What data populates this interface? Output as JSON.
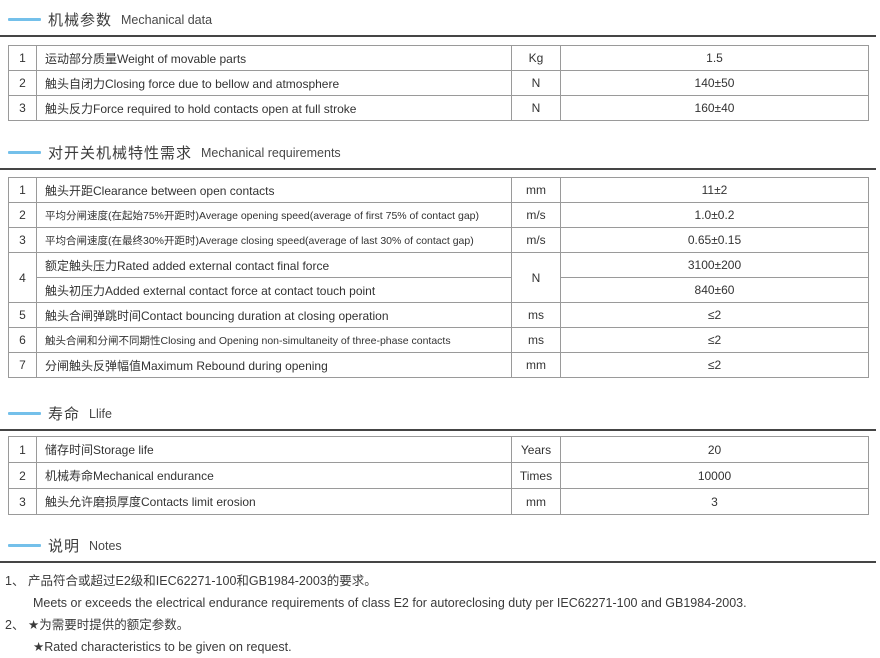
{
  "accent_color": "#74c0ea",
  "rule_color": "#454545",
  "mech": {
    "title_zh": "机械参数",
    "title_en": "Mechanical data",
    "rows": [
      {
        "num": "1",
        "desc": "运动部分质量Weight of movable parts",
        "unit": "Kg",
        "value": "1.5"
      },
      {
        "num": "2",
        "desc": "触头自闭力Closing force due to bellow and atmosphere",
        "unit": "N",
        "value": "140±50"
      },
      {
        "num": "3",
        "desc": "触头反力Force required to hold contacts open at full stroke",
        "unit": "N",
        "value": "160±40"
      }
    ]
  },
  "req": {
    "title_zh": "对开关机械特性需求",
    "title_en": "Mechanical requirements",
    "rows": [
      {
        "num": "1",
        "desc": "触头开距Clearance between open contacts",
        "unit": "mm",
        "value": "11±2"
      },
      {
        "num": "2",
        "desc": "平均分闸速度(在起始75%开距时)Average opening speed(average of first 75% of contact gap)",
        "unit": "m/s",
        "value": "1.0±0.2"
      },
      {
        "num": "3",
        "desc": "平均合闸速度(在最终30%开距时)Average closing speed(average of last 30% of contact gap)",
        "unit": "m/s",
        "value": "0.65±0.15"
      },
      {
        "num": "4",
        "desc_a": "额定触头压力Rated added external contact final force",
        "desc_b": "触头初压力Added external contact force at contact touch point",
        "unit": "N",
        "value_a": "3100±200",
        "value_b": "840±60"
      },
      {
        "num": "5",
        "desc": "触头合闸弹跳时间Contact bouncing duration at closing operation",
        "unit": "ms",
        "value": "≤2"
      },
      {
        "num": "6",
        "desc": "触头合闸和分闸不同期性Closing and Opening non-simultaneity of three-phase contacts",
        "unit": "ms",
        "value": "≤2"
      },
      {
        "num": "7",
        "desc": "分闸触头反弹幅值Maximum Rebound during opening",
        "unit": "mm",
        "value": "≤2"
      }
    ]
  },
  "life": {
    "title_zh": "寿命",
    "title_en": "Llife",
    "rows": [
      {
        "num": "1",
        "desc": "储存时间Storage life",
        "unit": "Years",
        "value": "20"
      },
      {
        "num": "2",
        "desc": "机械寿命Mechanical endurance",
        "unit": "Times",
        "value": "10000"
      },
      {
        "num": "3",
        "desc": "触头允许磨损厚度Contacts limit erosion",
        "unit": "mm",
        "value": "3"
      }
    ]
  },
  "notes": {
    "title_zh": "说明",
    "title_en": "Notes",
    "items": [
      {
        "marker": "1、",
        "zh": "产品符合或超过E2级和IEC62271-100和GB1984-2003的要求。",
        "en": "Meets or exceeds the electrical endurance requirements of class E2 for autoreclosing duty per IEC62271-100 and GB1984-2003."
      },
      {
        "marker": "2、",
        "zh": "★为需要时提供的额定参数。",
        "en": "★Rated characteristics to be given on request."
      }
    ]
  }
}
